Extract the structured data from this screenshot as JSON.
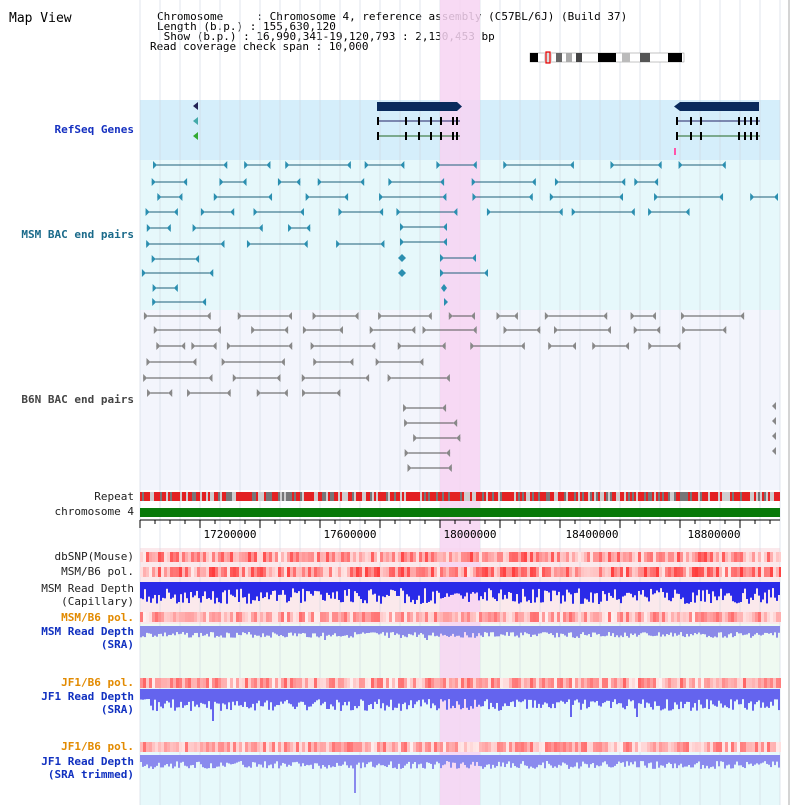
{
  "title": "Map View",
  "header": {
    "chromosome_label": "Chromosome     : ",
    "chromosome_value": "Chromosome 4, reference assembly (C57BL/6J) (Build 37)",
    "length_label": "Length (b.p.) : ",
    "length_value": "155,630,120",
    "show_label": " Show (b.p.) : ",
    "show_value": "16,990,341-19,120,793 : 2,130,453 bp",
    "coverage_label": "Read coverage check span : ",
    "coverage_value": "10,000"
  },
  "tracks": {
    "refseq": "RefSeq Genes",
    "msm_bac": "MSM BAC end pairs",
    "b6n_bac": "B6N BAC end pairs",
    "repeat": "Repeat",
    "chromosome": "chromosome 4",
    "dbsnp": "dbSNP(Mouse)",
    "msm_b6_pol_1": "MSM/B6 pol.",
    "msm_depth_cap_1": "MSM Read Depth",
    "msm_depth_cap_2": "(Capillary)",
    "msm_b6_pol_2": "MSM/B6 pol.",
    "msm_depth_sra_1": "MSM Read Depth",
    "msm_depth_sra_2": "(SRA)",
    "jf1_b6_pol_1": "JF1/B6 pol.",
    "jf1_depth_sra_1": "JF1 Read Depth",
    "jf1_depth_sra_2": "(SRA)",
    "jf1_b6_pol_2": "JF1/B6 pol.",
    "jf1_depth_trim_1": "JF1 Read Depth",
    "jf1_depth_trim_2": "(SRA trimmed)"
  },
  "ruler": {
    "ticks": [
      "17200000",
      "17600000",
      "18000000",
      "18400000",
      "18800000"
    ]
  },
  "colors": {
    "highlight": "#f7d4f2",
    "refseq_bg": "#d5eefb",
    "msm_bg": "#e6f8fb",
    "b6n_bg": "#f3f5fc",
    "chromosome": "#0a7a0a",
    "gene": "#0a2a5c"
  }
}
